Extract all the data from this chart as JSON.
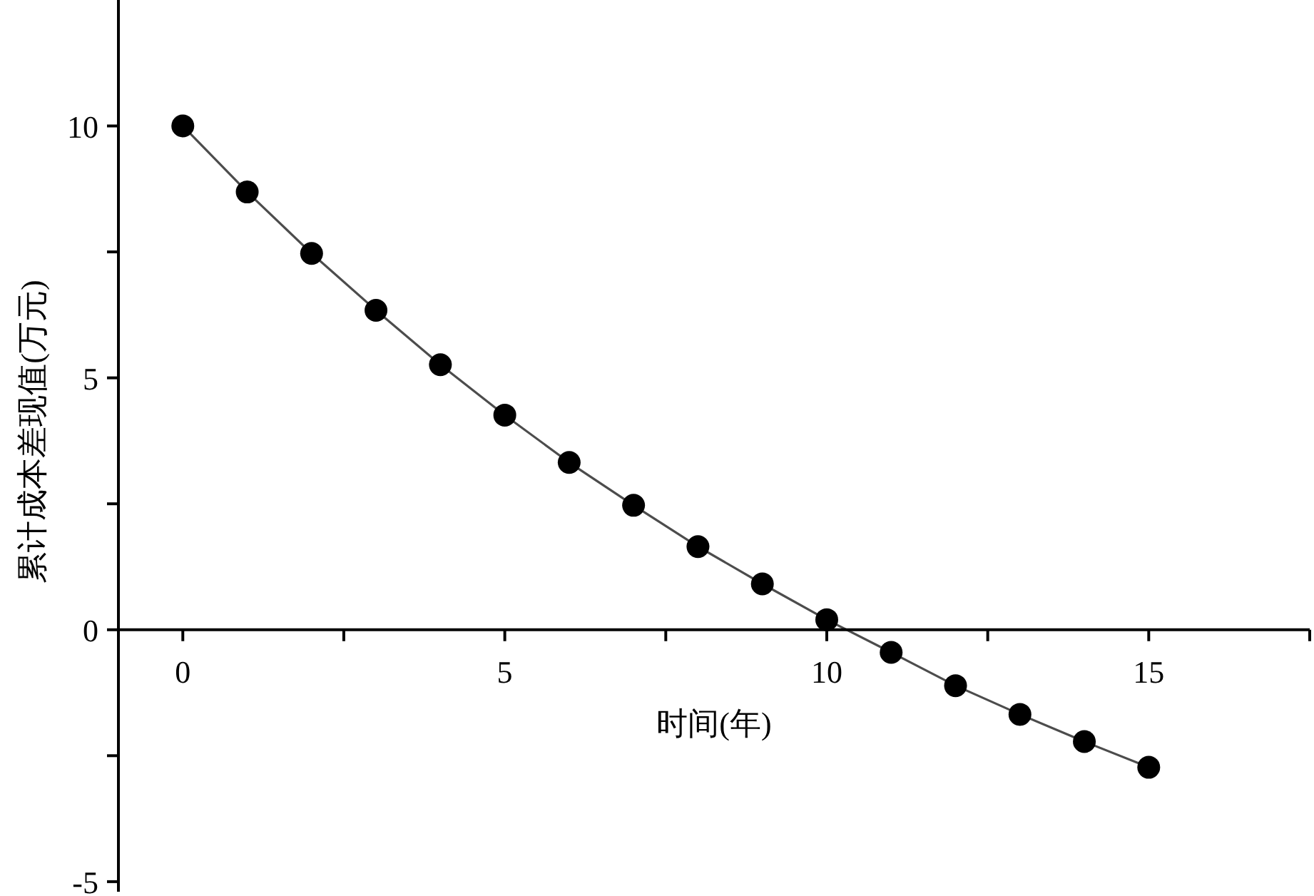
{
  "chart_data": {
    "type": "line",
    "xlabel": "时间(年)",
    "ylabel": "累计成本差现值(万元)",
    "x": [
      0,
      1,
      2,
      3,
      4,
      5,
      6,
      7,
      8,
      9,
      10,
      11,
      12,
      13,
      14,
      15
    ],
    "series": [
      {
        "color": "#000000",
        "values": [
          10,
          8.69,
          7.47,
          6.34,
          5.26,
          4.26,
          3.32,
          2.47,
          1.65,
          0.91,
          0.2,
          -0.45,
          -1.11,
          -1.68,
          -2.22,
          -2.73
        ]
      }
    ],
    "xlim": [
      -1,
      17.5
    ],
    "ylim": [
      -5.2,
      12.5
    ],
    "xticks": [
      0,
      {
        "value": 2.5,
        "label": null
      },
      5,
      {
        "value": 7.5,
        "label": null
      },
      10,
      {
        "value": 12.5,
        "label": null
      },
      15,
      {
        "value": 17.5,
        "label": null
      }
    ],
    "yticks": [
      {
        "value": -5,
        "label": "-5"
      },
      {
        "value": -2.5,
        "label": null
      },
      0,
      {
        "value": 2.5,
        "label": null
      },
      5,
      {
        "value": 7.5,
        "label": null
      },
      10
    ],
    "marker": "circle",
    "line_style": "solid"
  }
}
